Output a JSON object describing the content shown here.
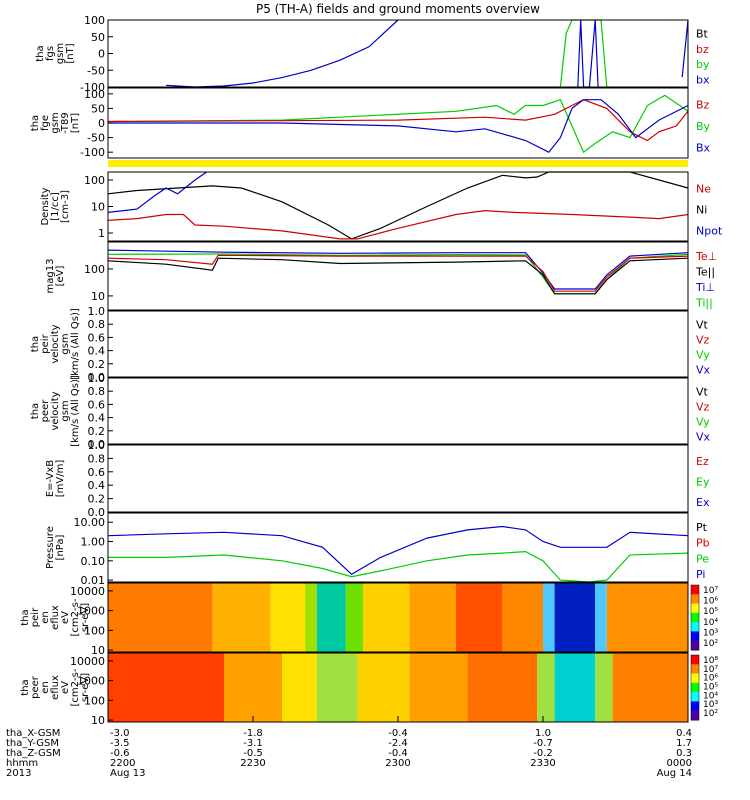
{
  "title": "P5 (TH-A) fields and ground moments overview",
  "colors": {
    "black": "#000000",
    "red": "#d00000",
    "green": "#00cc00",
    "blue": "#0000cc",
    "yellow": "#ffee00",
    "axis": "#000000"
  },
  "chart_data": [
    {
      "type": "line",
      "name": "fgs",
      "ylabel_lines": [
        "tha",
        "fgs",
        "gsm",
        "[nT]"
      ],
      "ylim": [
        -100,
        100
      ],
      "yticks": [
        "100",
        "50",
        "0",
        "-50",
        "-100"
      ],
      "legend": [
        {
          "label": "Bt",
          "color": "#000000"
        },
        {
          "label": "bz",
          "color": "#d00000"
        },
        {
          "label": "by",
          "color": "#00cc00"
        },
        {
          "label": "bx",
          "color": "#0000cc"
        }
      ],
      "series": [
        {
          "color": "#0000cc",
          "x": [
            0.1,
            0.15,
            0.2,
            0.25,
            0.3,
            0.35,
            0.4,
            0.45,
            0.5
          ],
          "y": [
            -95,
            -100,
            -97,
            -88,
            -72,
            -50,
            -20,
            20,
            100
          ]
        },
        {
          "color": "#00cc00",
          "x": [
            0.78,
            0.79,
            0.8,
            0.85,
            0.86
          ],
          "y": [
            -100,
            60,
            100,
            100,
            -100
          ]
        },
        {
          "color": "#0000cc",
          "x": [
            0.81,
            0.815,
            0.82,
            0.83,
            0.84,
            0.845
          ],
          "y": [
            -100,
            100,
            -100,
            -100,
            100,
            -100
          ]
        },
        {
          "color": "#0000cc",
          "x": [
            0.99,
            1.0
          ],
          "y": [
            -70,
            100
          ]
        }
      ]
    },
    {
      "type": "line",
      "name": "fge",
      "ylabel_lines": [
        "tha",
        "fge",
        "gsm",
        "-T89",
        "[nT]"
      ],
      "ylim": [
        -120,
        120
      ],
      "yticks": [
        "100",
        "50",
        "0",
        "-50",
        "-100"
      ],
      "ytick_values": [
        100,
        50,
        0,
        -50,
        -100
      ],
      "legend": [
        {
          "label": "Bz",
          "color": "#d00000"
        },
        {
          "label": "By",
          "color": "#00cc00"
        },
        {
          "label": "Bx",
          "color": "#0000cc"
        }
      ],
      "series": [
        {
          "color": "#00cc00",
          "x": [
            0,
            0.3,
            0.45,
            0.6,
            0.67,
            0.7,
            0.72,
            0.75,
            0.78,
            0.82,
            0.84,
            0.87,
            0.9,
            0.93,
            0.96,
            1.0
          ],
          "y": [
            5,
            10,
            25,
            40,
            60,
            30,
            60,
            60,
            80,
            -100,
            -70,
            -30,
            -50,
            60,
            95,
            40
          ]
        },
        {
          "color": "#d00000",
          "x": [
            0,
            0.3,
            0.5,
            0.65,
            0.72,
            0.77,
            0.8,
            0.82,
            0.86,
            0.9,
            0.93,
            0.95,
            0.98,
            1.0
          ],
          "y": [
            5,
            8,
            10,
            20,
            10,
            30,
            60,
            80,
            50,
            -30,
            -60,
            -30,
            -10,
            40
          ]
        },
        {
          "color": "#0000cc",
          "x": [
            0,
            0.3,
            0.5,
            0.6,
            0.65,
            0.72,
            0.76,
            0.78,
            0.8,
            0.82,
            0.85,
            0.88,
            0.91,
            0.95,
            1.0
          ],
          "y": [
            0,
            0,
            -10,
            -30,
            -20,
            -60,
            -100,
            -50,
            50,
            80,
            80,
            30,
            -50,
            10,
            60
          ]
        }
      ]
    },
    {
      "type": "line",
      "name": "density",
      "ylabel_lines": [
        "Density",
        "[1/cc]",
        "[cm-3]"
      ],
      "yscale": "log",
      "ylim": [
        0.5,
        200
      ],
      "yticks": [
        "100",
        "10",
        "1"
      ],
      "ytick_values": [
        100,
        10,
        1
      ],
      "legend": [
        {
          "label": "Ne",
          "color": "#d00000"
        },
        {
          "label": "Ni",
          "color": "#000000"
        },
        {
          "label": "Npot",
          "color": "#0000cc"
        }
      ],
      "series": [
        {
          "color": "#000000",
          "x": [
            0,
            0.05,
            0.12,
            0.18,
            0.23,
            0.3,
            0.38,
            0.42,
            0.47,
            0.55,
            0.62,
            0.68,
            0.72,
            0.74,
            0.76,
            0.9,
            1.0
          ],
          "y": [
            30,
            40,
            50,
            60,
            50,
            15,
            2,
            0.6,
            1.5,
            10,
            50,
            150,
            120,
            130,
            200,
            200,
            50
          ]
        },
        {
          "color": "#d00000",
          "x": [
            0,
            0.05,
            0.1,
            0.13,
            0.15,
            0.2,
            0.3,
            0.4,
            0.43,
            0.5,
            0.6,
            0.65,
            0.7,
            0.8,
            0.9,
            0.95,
            1.0
          ],
          "y": [
            3,
            3.5,
            5,
            5,
            2,
            1.8,
            1.2,
            0.6,
            0.6,
            1.5,
            5,
            7,
            6,
            5,
            4,
            3.5,
            5
          ]
        },
        {
          "color": "#0000cc",
          "x": [
            0,
            0.05,
            0.08,
            0.1,
            0.12,
            0.15,
            0.17
          ],
          "y": [
            6,
            8,
            25,
            50,
            30,
            100,
            200
          ]
        }
      ]
    },
    {
      "type": "line",
      "name": "temperature",
      "ylabel_lines": [
        "mag13",
        "[eV]"
      ],
      "yscale": "log",
      "ylim": [
        3,
        1000
      ],
      "yticks": [
        "100",
        "10"
      ],
      "ytick_values": [
        100,
        10
      ],
      "legend": [
        {
          "label": "Te⊥",
          "color": "#d00000"
        },
        {
          "label": "Te||",
          "color": "#000000"
        },
        {
          "label": "Ti⊥",
          "color": "#0000cc"
        },
        {
          "label": "Ti||",
          "color": "#00cc00"
        }
      ],
      "series": [
        {
          "color": "#0000cc",
          "x": [
            0,
            0.2,
            0.4,
            0.6,
            0.72,
            0.75,
            0.77,
            0.84,
            0.86,
            0.9,
            1.0
          ],
          "y": [
            500,
            420,
            380,
            400,
            400,
            70,
            18,
            18,
            60,
            300,
            400
          ]
        },
        {
          "color": "#00cc00",
          "x": [
            0,
            0.2,
            0.4,
            0.6,
            0.72,
            0.75,
            0.77,
            0.84,
            0.86,
            0.9,
            1.0
          ],
          "y": [
            350,
            360,
            320,
            340,
            330,
            50,
            12,
            12,
            40,
            250,
            350
          ]
        },
        {
          "color": "#d00000",
          "x": [
            0,
            0.1,
            0.18,
            0.19,
            0.4,
            0.6,
            0.72,
            0.75,
            0.77,
            0.84,
            0.86,
            0.9,
            1.0
          ],
          "y": [
            250,
            220,
            150,
            320,
            300,
            300,
            300,
            80,
            15,
            15,
            50,
            250,
            300
          ]
        },
        {
          "color": "#000000",
          "x": [
            0,
            0.1,
            0.18,
            0.19,
            0.3,
            0.4,
            0.6,
            0.72,
            0.75,
            0.77,
            0.84,
            0.86,
            0.9,
            1.0
          ],
          "y": [
            200,
            150,
            90,
            250,
            220,
            160,
            180,
            200,
            60,
            12,
            12,
            40,
            200,
            250
          ]
        }
      ]
    },
    {
      "type": "line",
      "name": "peir-velocity",
      "ylabel_lines": [
        "tha",
        "peir",
        "velocity",
        "gsm",
        "[km/s (All Qs)]"
      ],
      "ylim": [
        0,
        1
      ],
      "yticks": [
        "1.0",
        "0.8",
        "0.6",
        "0.4",
        "0.2",
        "0.0"
      ],
      "ytick_values": [
        1,
        0.8,
        0.6,
        0.4,
        0.2,
        0
      ],
      "legend": [
        {
          "label": "Vt",
          "color": "#000000"
        },
        {
          "label": "Vz",
          "color": "#d00000"
        },
        {
          "label": "Vy",
          "color": "#00cc00"
        },
        {
          "label": "Vx",
          "color": "#0000cc"
        }
      ],
      "series": []
    },
    {
      "type": "line",
      "name": "peer-velocity",
      "ylabel_lines": [
        "tha",
        "peer",
        "velocity",
        "gsm",
        "[km/s (All Qs)]"
      ],
      "ylim": [
        0,
        1
      ],
      "yticks": [
        "1.0",
        "0.8",
        "0.6",
        "0.4",
        "0.2",
        "0.0"
      ],
      "ytick_values": [
        1,
        0.8,
        0.6,
        0.4,
        0.2,
        0
      ],
      "legend": [
        {
          "label": "Vt",
          "color": "#000000"
        },
        {
          "label": "Vz",
          "color": "#d00000"
        },
        {
          "label": "Vy",
          "color": "#00cc00"
        },
        {
          "label": "Vx",
          "color": "#0000cc"
        }
      ],
      "series": []
    },
    {
      "type": "line",
      "name": "efield",
      "ylabel_lines": [
        "E=-VxB",
        "[mV/m]"
      ],
      "ylim": [
        0,
        1
      ],
      "yticks": [
        "1.0",
        "0.8",
        "0.6",
        "0.4",
        "0.2",
        "0.0"
      ],
      "ytick_values": [
        1,
        0.8,
        0.6,
        0.4,
        0.2,
        0
      ],
      "legend": [
        {
          "label": "Ez",
          "color": "#d00000"
        },
        {
          "label": "Ey",
          "color": "#00cc00"
        },
        {
          "label": "Ex",
          "color": "#0000cc"
        }
      ],
      "series": []
    },
    {
      "type": "line",
      "name": "pressure",
      "ylabel_lines": [
        "Pressure",
        "[nPa]"
      ],
      "yscale": "log",
      "ylim": [
        0.008,
        30
      ],
      "yticks": [
        "10.00",
        "1.00",
        "0.10",
        "0.01"
      ],
      "ytick_values": [
        10,
        1,
        0.1,
        0.01
      ],
      "legend": [
        {
          "label": "Pt",
          "color": "#000000"
        },
        {
          "label": "Pb",
          "color": "#d00000"
        },
        {
          "label": "Pe",
          "color": "#00cc00"
        },
        {
          "label": "Pi",
          "color": "#0000cc"
        }
      ],
      "series": [
        {
          "color": "#0000cc",
          "x": [
            0,
            0.1,
            0.2,
            0.3,
            0.37,
            0.42,
            0.47,
            0.55,
            0.62,
            0.68,
            0.72,
            0.75,
            0.78,
            0.83,
            0.86,
            0.9,
            1.0
          ],
          "y": [
            2,
            2.5,
            3,
            2,
            0.5,
            0.02,
            0.15,
            1.5,
            4,
            6,
            4,
            1,
            0.5,
            0.5,
            0.5,
            3,
            2
          ]
        },
        {
          "color": "#00cc00",
          "x": [
            0,
            0.1,
            0.2,
            0.3,
            0.37,
            0.42,
            0.47,
            0.55,
            0.62,
            0.68,
            0.72,
            0.75,
            0.78,
            0.83,
            0.86,
            0.9,
            1.0
          ],
          "y": [
            0.15,
            0.15,
            0.2,
            0.1,
            0.04,
            0.015,
            0.03,
            0.1,
            0.2,
            0.25,
            0.3,
            0.1,
            0.01,
            0.008,
            0.01,
            0.2,
            0.25
          ]
        }
      ]
    },
    {
      "type": "heatmap",
      "name": "peir-eflux",
      "ylabel_lines": [
        "tha",
        "peir",
        "en",
        "eflux",
        "eV",
        "[cm2-s-",
        "sr-eV]"
      ],
      "yscale": "log",
      "ylim": [
        8,
        25000
      ],
      "yticks": [
        "10000",
        "1000",
        "100",
        "10"
      ],
      "ytick_values": [
        10000,
        1000,
        100,
        10
      ],
      "colorbar_ticks": [
        "10⁷",
        "10⁶",
        "10⁵",
        "10⁴",
        "10³",
        "10²"
      ],
      "bands": [
        {
          "x0": 0.0,
          "x1": 0.18,
          "color": "#ff7a00"
        },
        {
          "x0": 0.18,
          "x1": 0.28,
          "color": "#ffb000"
        },
        {
          "x0": 0.28,
          "x1": 0.34,
          "color": "#ffe000"
        },
        {
          "x0": 0.34,
          "x1": 0.36,
          "color": "#a0e000"
        },
        {
          "x0": 0.36,
          "x1": 0.41,
          "color": "#00c8a0"
        },
        {
          "x0": 0.41,
          "x1": 0.44,
          "color": "#70e000"
        },
        {
          "x0": 0.44,
          "x1": 0.52,
          "color": "#ffd000"
        },
        {
          "x0": 0.52,
          "x1": 0.6,
          "color": "#ffa000"
        },
        {
          "x0": 0.6,
          "x1": 0.68,
          "color": "#ff5000"
        },
        {
          "x0": 0.68,
          "x1": 0.75,
          "color": "#ff8800"
        },
        {
          "x0": 0.75,
          "x1": 0.77,
          "color": "#50c8ff"
        },
        {
          "x0": 0.77,
          "x1": 0.84,
          "color": "#0020c0"
        },
        {
          "x0": 0.84,
          "x1": 0.86,
          "color": "#50c8ff"
        },
        {
          "x0": 0.86,
          "x1": 1.0,
          "color": "#ff9000"
        }
      ]
    },
    {
      "type": "heatmap",
      "name": "peer-eflux",
      "ylabel_lines": [
        "tha",
        "peer",
        "en",
        "eflux",
        "eV",
        "[cm2-s-",
        "sr-eV]"
      ],
      "yscale": "log",
      "ylim": [
        8,
        25000
      ],
      "yticks": [
        "10000",
        "1000",
        "100",
        "10"
      ],
      "ytick_values": [
        10000,
        1000,
        100,
        10
      ],
      "colorbar_ticks": [
        "10⁸",
        "10⁷",
        "10⁶",
        "10⁵",
        "10⁴",
        "10³",
        "10²"
      ],
      "bands": [
        {
          "x0": 0.0,
          "x1": 0.2,
          "color": "#ff4000"
        },
        {
          "x0": 0.2,
          "x1": 0.3,
          "color": "#ffa000"
        },
        {
          "x0": 0.3,
          "x1": 0.36,
          "color": "#ffe000"
        },
        {
          "x0": 0.36,
          "x1": 0.43,
          "color": "#a0e040"
        },
        {
          "x0": 0.43,
          "x1": 0.52,
          "color": "#ffd000"
        },
        {
          "x0": 0.52,
          "x1": 0.62,
          "color": "#ffa000"
        },
        {
          "x0": 0.62,
          "x1": 0.74,
          "color": "#ff7000"
        },
        {
          "x0": 0.74,
          "x1": 0.77,
          "color": "#a0e040"
        },
        {
          "x0": 0.77,
          "x1": 0.84,
          "color": "#00d0d0"
        },
        {
          "x0": 0.84,
          "x1": 0.87,
          "color": "#a0e040"
        },
        {
          "x0": 0.87,
          "x1": 1.0,
          "color": "#ff8000"
        }
      ]
    }
  ],
  "xaxis": {
    "row_labels": [
      "tha_X-GSM",
      "tha_Y-GSM",
      "tha_Z-GSM",
      "hhmm",
      "2013"
    ],
    "ticks": [
      {
        "pos": 0.0,
        "values": [
          "-3.0",
          "-3.5",
          "-0.6",
          "2200",
          "Aug 13"
        ]
      },
      {
        "pos": 0.25,
        "values": [
          "-1.8",
          "-3.1",
          "-0.5",
          "2230",
          ""
        ]
      },
      {
        "pos": 0.5,
        "values": [
          "-0.4",
          "-2.4",
          "-0.4",
          "2300",
          ""
        ]
      },
      {
        "pos": 0.75,
        "values": [
          "1.0",
          "-0.7",
          "-0.2",
          "2330",
          ""
        ]
      },
      {
        "pos": 1.0,
        "values": [
          "0.4",
          "1.7",
          "0.3",
          "0000",
          "Aug 14"
        ]
      }
    ]
  }
}
